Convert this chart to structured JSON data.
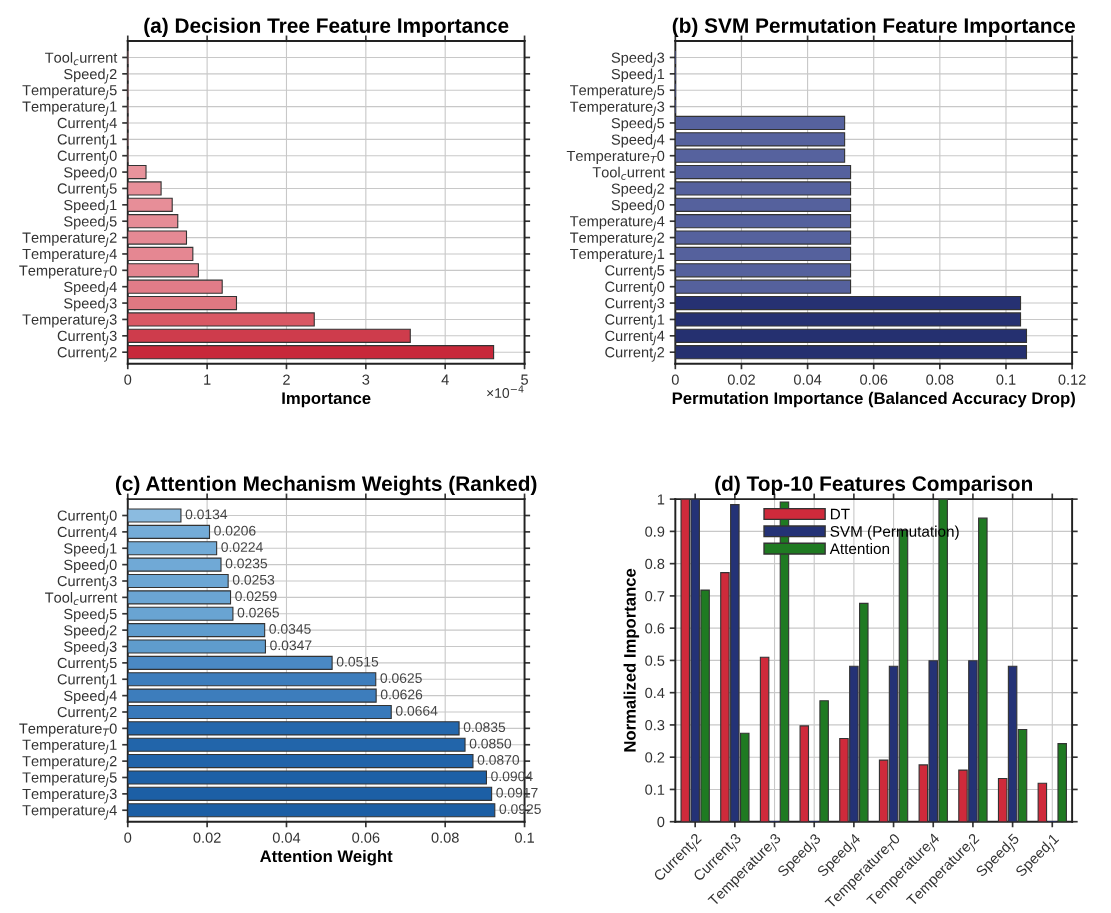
{
  "chart_data": [
    {
      "type": "bar",
      "orientation": "horizontal",
      "title": "(a) Decision Tree Feature Importance",
      "xlabel": "Importance",
      "categories": [
        "Tool$_{c}$urrent",
        "Speed$_{J}$2",
        "Temperature$_{J}$5",
        "Temperature$_{J}$1",
        "Current$_{J}$4",
        "Current$_{J}$1",
        "Current$_{J}$0",
        "Speed$_{J}$0",
        "Current$_{J}$5",
        "Speed$_{J}$1",
        "Speed$_{J}$5",
        "Temperature$_{J}$2",
        "Temperature$_{J}$4",
        "Temperature$_{T}$0",
        "Speed$_{J}$4",
        "Speed$_{J}$3",
        "Temperature$_{J}$3",
        "Current$_{J}$3",
        "Current$_{J}$2"
      ],
      "values": [
        0,
        0,
        0,
        0,
        0,
        0,
        0,
        0.23,
        0.42,
        0.56,
        0.63,
        0.74,
        0.82,
        0.89,
        1.19,
        1.37,
        2.35,
        3.56,
        4.61
      ],
      "colors": [
        "#eaa4ab",
        "#eaa4ab",
        "#eaa4ab",
        "#eaa4ab",
        "#eaa4ab",
        "#eaa4ab",
        "#eaa4ab",
        "#e8939c",
        "#e8909a",
        "#e78e98",
        "#e68c96",
        "#e58994",
        "#e58792",
        "#e48590",
        "#e27c88",
        "#e07882",
        "#d95864",
        "#ce3c4c",
        "#c8283a"
      ],
      "xlim": [
        0,
        5
      ],
      "xticks": [
        0,
        1,
        2,
        3,
        4,
        5
      ],
      "grid": true,
      "annotations": [
        "×10$^{−4}$"
      ]
    },
    {
      "type": "bar",
      "orientation": "horizontal",
      "title": "(b) SVM Permutation Feature Importance",
      "xlabel": "Permutation Importance (Balanced Accuracy Drop)",
      "categories": [
        "Speed$_{J}$3",
        "Speed$_{J}$1",
        "Temperature$_{J}$5",
        "Temperature$_{J}$3",
        "Speed$_{J}$5",
        "Speed$_{J}$4",
        "Temperature$_{T}$0",
        "Tool$_{c}$urrent",
        "Speed$_{J}$2",
        "Speed$_{J}$0",
        "Temperature$_{J}$4",
        "Temperature$_{J}$2",
        "Temperature$_{J}$1",
        "Current$_{J}$5",
        "Current$_{J}$0",
        "Current$_{J}$3",
        "Current$_{J}$1",
        "Current$_{J}$4",
        "Current$_{J}$2"
      ],
      "values": [
        0,
        0,
        0,
        0,
        0.0512,
        0.0512,
        0.0512,
        0.053,
        0.053,
        0.053,
        0.053,
        0.053,
        0.053,
        0.053,
        0.053,
        0.1044,
        0.1044,
        0.1062,
        0.1062
      ],
      "colors": [
        "#56629e",
        "#56629e",
        "#56629e",
        "#56629e",
        "#56629e",
        "#56629e",
        "#56629e",
        "#55619d",
        "#55619d",
        "#55619d",
        "#55619d",
        "#55619d",
        "#55619d",
        "#55619d",
        "#55619d",
        "#263172",
        "#263172",
        "#253070",
        "#253070"
      ],
      "xlim": [
        0,
        0.12
      ],
      "xticks": [
        0,
        0.02,
        0.04,
        0.06,
        0.08,
        0.1,
        0.12
      ],
      "grid": true
    },
    {
      "type": "bar",
      "orientation": "horizontal",
      "title": "(c) Attention Mechanism Weights (Ranked)",
      "xlabel": "Attention Weight",
      "categories": [
        "Current$_{J}$0",
        "Current$_{J}$4",
        "Speed$_{J}$1",
        "Speed$_{J}$0",
        "Current$_{J}$3",
        "Tool$_{c}$urrent",
        "Speed$_{J}$5",
        "Speed$_{J}$2",
        "Speed$_{J}$3",
        "Current$_{J}$5",
        "Current$_{J}$1",
        "Speed$_{J}$4",
        "Current$_{J}$2",
        "Temperature$_{T}$0",
        "Temperature$_{J}$1",
        "Temperature$_{J}$2",
        "Temperature$_{J}$5",
        "Temperature$_{J}$3",
        "Temperature$_{J}$4"
      ],
      "values": [
        0.0134,
        0.0206,
        0.0224,
        0.0235,
        0.0253,
        0.0259,
        0.0265,
        0.0345,
        0.0347,
        0.0515,
        0.0625,
        0.0626,
        0.0664,
        0.0835,
        0.085,
        0.087,
        0.0904,
        0.0917,
        0.0925
      ],
      "value_labels": [
        "0.0134",
        "0.0206",
        "0.0224",
        "0.0235",
        "0.0253",
        "0.0259",
        "0.0265",
        "0.0345",
        "0.0347",
        "0.0515",
        "0.0625",
        "0.0626",
        "0.0664",
        "0.0835",
        "0.0850",
        "0.0870",
        "0.0904",
        "0.0917",
        "0.0925"
      ],
      "colors": [
        "#8bbbe0",
        "#74acd8",
        "#72abd7",
        "#70a9d6",
        "#6ca6d4",
        "#6ba5d3",
        "#69a4d2",
        "#5f9ccd",
        "#5f9ccd",
        "#4a89c4",
        "#3d7dbc",
        "#3d7dbc",
        "#3879ba",
        "#2467ac",
        "#2265aa",
        "#2063a9",
        "#1d60a6",
        "#1c5fa5",
        "#1b5ea4"
      ],
      "xlim": [
        0,
        0.1
      ],
      "xticks": [
        0,
        0.02,
        0.04,
        0.06,
        0.08,
        0.1
      ],
      "grid": true
    },
    {
      "type": "bar",
      "title": "(d) Top-10 Features Comparison",
      "ylabel": "Normalized Importance",
      "categories": [
        "Current$_{J}$2",
        "Current$_{J}$3",
        "Temperature$_{J}$3",
        "Speed$_{J}$3",
        "Speed$_{J}$4",
        "Temperature$_{T}$0",
        "Temperature$_{J}$4",
        "Temperature$_{J}$2",
        "Speed$_{J}$5",
        "Speed$_{J}$1"
      ],
      "series": [
        {
          "name": "DT",
          "color": "#cf2a3b",
          "values": [
            1,
            0.772,
            0.51,
            0.297,
            0.258,
            0.191,
            0.176,
            0.16,
            0.134,
            0.119
          ]
        },
        {
          "name": "SVM (Permutation)",
          "color": "#243276",
          "values": [
            1,
            0.983,
            0,
            0,
            0.482,
            0.482,
            0.499,
            0.499,
            0.482,
            0
          ]
        },
        {
          "name": "Attention",
          "color": "#1f7a22",
          "values": [
            0.718,
            0.274,
            0.991,
            0.375,
            0.677,
            0.903,
            1,
            0.941,
            0.286,
            0.242
          ]
        }
      ],
      "ylim": [
        0,
        1
      ],
      "yticks": [
        0,
        0.1,
        0.2,
        0.3,
        0.4,
        0.5,
        0.6,
        0.7,
        0.8,
        0.9,
        1
      ],
      "grid": true,
      "legend": "top center"
    }
  ]
}
